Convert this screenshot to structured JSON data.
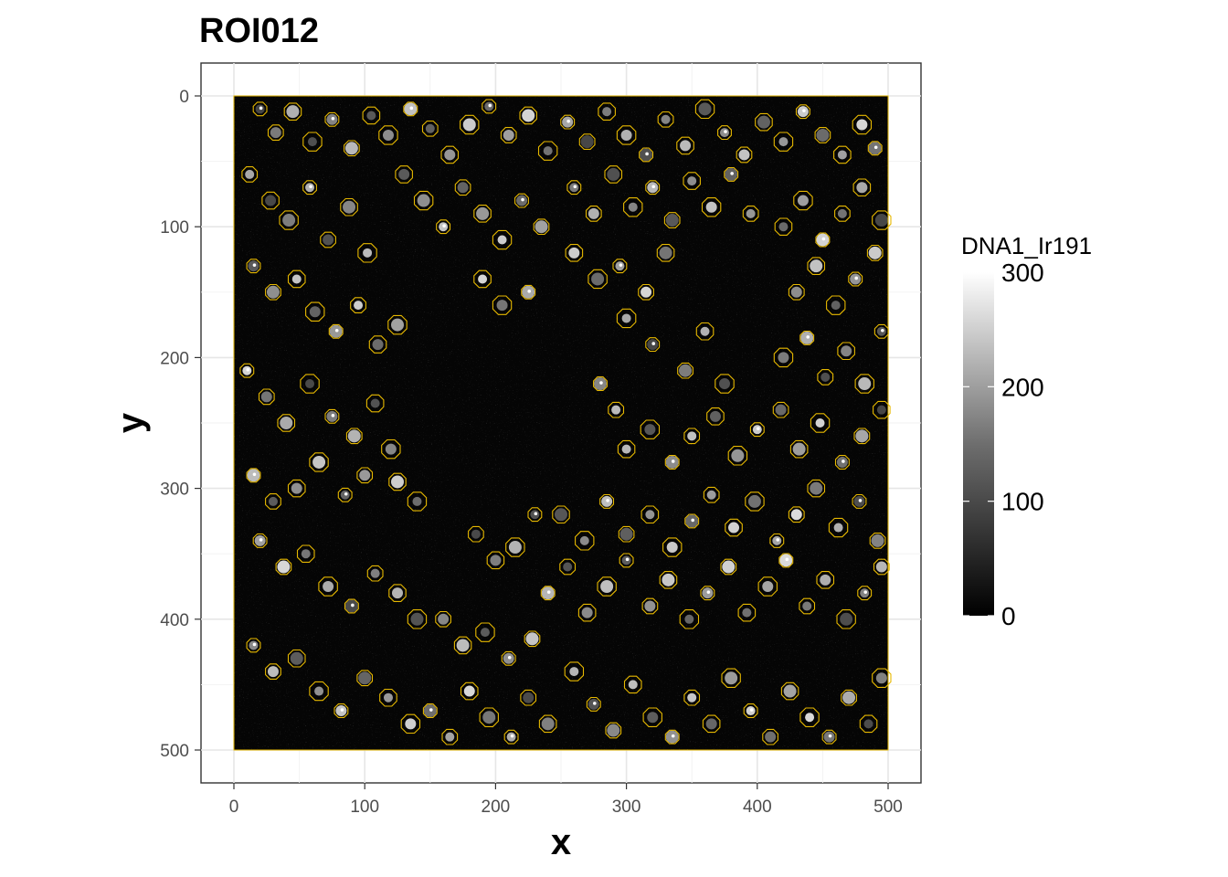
{
  "chart_data": {
    "type": "heatmap",
    "title": "ROI012",
    "xlabel": "x",
    "ylabel": "y",
    "xlim": [
      0,
      500
    ],
    "ylim": [
      0,
      500
    ],
    "y_reversed": true,
    "x_ticks": [
      0,
      100,
      200,
      300,
      400,
      500
    ],
    "y_ticks": [
      0,
      100,
      200,
      300,
      400,
      500
    ],
    "x_tick_labels": [
      "0",
      "100",
      "200",
      "300",
      "400",
      "500"
    ],
    "y_tick_labels": [
      "0",
      "100",
      "200",
      "300",
      "400",
      "500"
    ],
    "grid": true,
    "image_channel": "DNA1_Ir191",
    "colormap": "black-to-white",
    "outline_color": "#e6b800",
    "legend": {
      "title": "DNA1_Ir191",
      "position": "right",
      "range": [
        0,
        300
      ],
      "breaks": [
        0,
        100,
        200,
        300
      ],
      "labels": [
        "0",
        "100",
        "200",
        "300"
      ]
    },
    "cell_outlines": [
      [
        20,
        10
      ],
      [
        32,
        28
      ],
      [
        45,
        12
      ],
      [
        60,
        35
      ],
      [
        75,
        18
      ],
      [
        90,
        40
      ],
      [
        105,
        15
      ],
      [
        118,
        30
      ],
      [
        135,
        10
      ],
      [
        150,
        25
      ],
      [
        165,
        45
      ],
      [
        180,
        22
      ],
      [
        195,
        8
      ],
      [
        210,
        30
      ],
      [
        225,
        15
      ],
      [
        240,
        42
      ],
      [
        255,
        20
      ],
      [
        270,
        35
      ],
      [
        285,
        12
      ],
      [
        300,
        30
      ],
      [
        315,
        45
      ],
      [
        330,
        18
      ],
      [
        345,
        38
      ],
      [
        360,
        10
      ],
      [
        375,
        28
      ],
      [
        390,
        45
      ],
      [
        405,
        20
      ],
      [
        420,
        35
      ],
      [
        435,
        12
      ],
      [
        450,
        30
      ],
      [
        465,
        45
      ],
      [
        480,
        22
      ],
      [
        490,
        40
      ],
      [
        12,
        60
      ],
      [
        28,
        80
      ],
      [
        42,
        95
      ],
      [
        58,
        70
      ],
      [
        72,
        110
      ],
      [
        88,
        85
      ],
      [
        102,
        120
      ],
      [
        15,
        130
      ],
      [
        30,
        150
      ],
      [
        48,
        140
      ],
      [
        62,
        165
      ],
      [
        78,
        180
      ],
      [
        95,
        160
      ],
      [
        110,
        190
      ],
      [
        125,
        175
      ],
      [
        10,
        210
      ],
      [
        25,
        230
      ],
      [
        40,
        250
      ],
      [
        58,
        220
      ],
      [
        75,
        245
      ],
      [
        92,
        260
      ],
      [
        108,
        235
      ],
      [
        120,
        270
      ],
      [
        15,
        290
      ],
      [
        30,
        310
      ],
      [
        48,
        300
      ],
      [
        65,
        280
      ],
      [
        85,
        305
      ],
      [
        100,
        290
      ],
      [
        125,
        295
      ],
      [
        140,
        310
      ],
      [
        20,
        340
      ],
      [
        38,
        360
      ],
      [
        55,
        350
      ],
      [
        72,
        375
      ],
      [
        90,
        390
      ],
      [
        108,
        365
      ],
      [
        125,
        380
      ],
      [
        140,
        400
      ],
      [
        15,
        420
      ],
      [
        30,
        440
      ],
      [
        48,
        430
      ],
      [
        65,
        455
      ],
      [
        82,
        470
      ],
      [
        100,
        445
      ],
      [
        118,
        460
      ],
      [
        135,
        480
      ],
      [
        150,
        470
      ],
      [
        165,
        490
      ],
      [
        180,
        455
      ],
      [
        195,
        475
      ],
      [
        212,
        490
      ],
      [
        225,
        460
      ],
      [
        240,
        480
      ],
      [
        260,
        440
      ],
      [
        275,
        465
      ],
      [
        290,
        485
      ],
      [
        305,
        450
      ],
      [
        320,
        475
      ],
      [
        335,
        490
      ],
      [
        350,
        460
      ],
      [
        365,
        480
      ],
      [
        380,
        445
      ],
      [
        395,
        470
      ],
      [
        410,
        490
      ],
      [
        425,
        455
      ],
      [
        440,
        475
      ],
      [
        455,
        490
      ],
      [
        470,
        460
      ],
      [
        485,
        480
      ],
      [
        495,
        445
      ],
      [
        240,
        380
      ],
      [
        255,
        360
      ],
      [
        270,
        395
      ],
      [
        285,
        375
      ],
      [
        300,
        355
      ],
      [
        318,
        390
      ],
      [
        332,
        370
      ],
      [
        348,
        400
      ],
      [
        362,
        380
      ],
      [
        378,
        360
      ],
      [
        392,
        395
      ],
      [
        408,
        375
      ],
      [
        422,
        355
      ],
      [
        438,
        390
      ],
      [
        452,
        370
      ],
      [
        468,
        400
      ],
      [
        482,
        380
      ],
      [
        495,
        360
      ],
      [
        250,
        320
      ],
      [
        268,
        340
      ],
      [
        285,
        310
      ],
      [
        300,
        335
      ],
      [
        318,
        320
      ],
      [
        335,
        345
      ],
      [
        350,
        325
      ],
      [
        365,
        305
      ],
      [
        382,
        330
      ],
      [
        398,
        310
      ],
      [
        415,
        340
      ],
      [
        430,
        320
      ],
      [
        445,
        300
      ],
      [
        462,
        330
      ],
      [
        478,
        310
      ],
      [
        492,
        340
      ],
      [
        300,
        270
      ],
      [
        318,
        255
      ],
      [
        335,
        280
      ],
      [
        350,
        260
      ],
      [
        368,
        245
      ],
      [
        385,
        275
      ],
      [
        400,
        255
      ],
      [
        418,
        240
      ],
      [
        432,
        270
      ],
      [
        448,
        250
      ],
      [
        465,
        280
      ],
      [
        480,
        260
      ],
      [
        495,
        240
      ],
      [
        420,
        200
      ],
      [
        438,
        185
      ],
      [
        452,
        215
      ],
      [
        468,
        195
      ],
      [
        482,
        220
      ],
      [
        495,
        180
      ],
      [
        430,
        150
      ],
      [
        445,
        130
      ],
      [
        460,
        160
      ],
      [
        475,
        140
      ],
      [
        490,
        120
      ],
      [
        420,
        100
      ],
      [
        435,
        80
      ],
      [
        450,
        110
      ],
      [
        465,
        90
      ],
      [
        480,
        70
      ],
      [
        495,
        95
      ],
      [
        260,
        70
      ],
      [
        275,
        90
      ],
      [
        290,
        60
      ],
      [
        305,
        85
      ],
      [
        320,
        70
      ],
      [
        335,
        95
      ],
      [
        350,
        65
      ],
      [
        365,
        85
      ],
      [
        380,
        60
      ],
      [
        395,
        90
      ],
      [
        260,
        120
      ],
      [
        278,
        140
      ],
      [
        295,
        130
      ],
      [
        315,
        150
      ],
      [
        330,
        120
      ],
      [
        300,
        170
      ],
      [
        320,
        190
      ],
      [
        345,
        210
      ],
      [
        360,
        180
      ],
      [
        375,
        220
      ],
      [
        280,
        220
      ],
      [
        292,
        240
      ],
      [
        130,
        60
      ],
      [
        145,
        80
      ],
      [
        160,
        100
      ],
      [
        175,
        70
      ],
      [
        190,
        90
      ],
      [
        205,
        110
      ],
      [
        220,
        80
      ],
      [
        235,
        100
      ],
      [
        190,
        140
      ],
      [
        205,
        160
      ],
      [
        225,
        150
      ],
      [
        185,
        335
      ],
      [
        200,
        355
      ],
      [
        215,
        345
      ],
      [
        230,
        320
      ],
      [
        160,
        400
      ],
      [
        175,
        420
      ],
      [
        192,
        410
      ],
      [
        210,
        430
      ],
      [
        228,
        415
      ]
    ]
  }
}
